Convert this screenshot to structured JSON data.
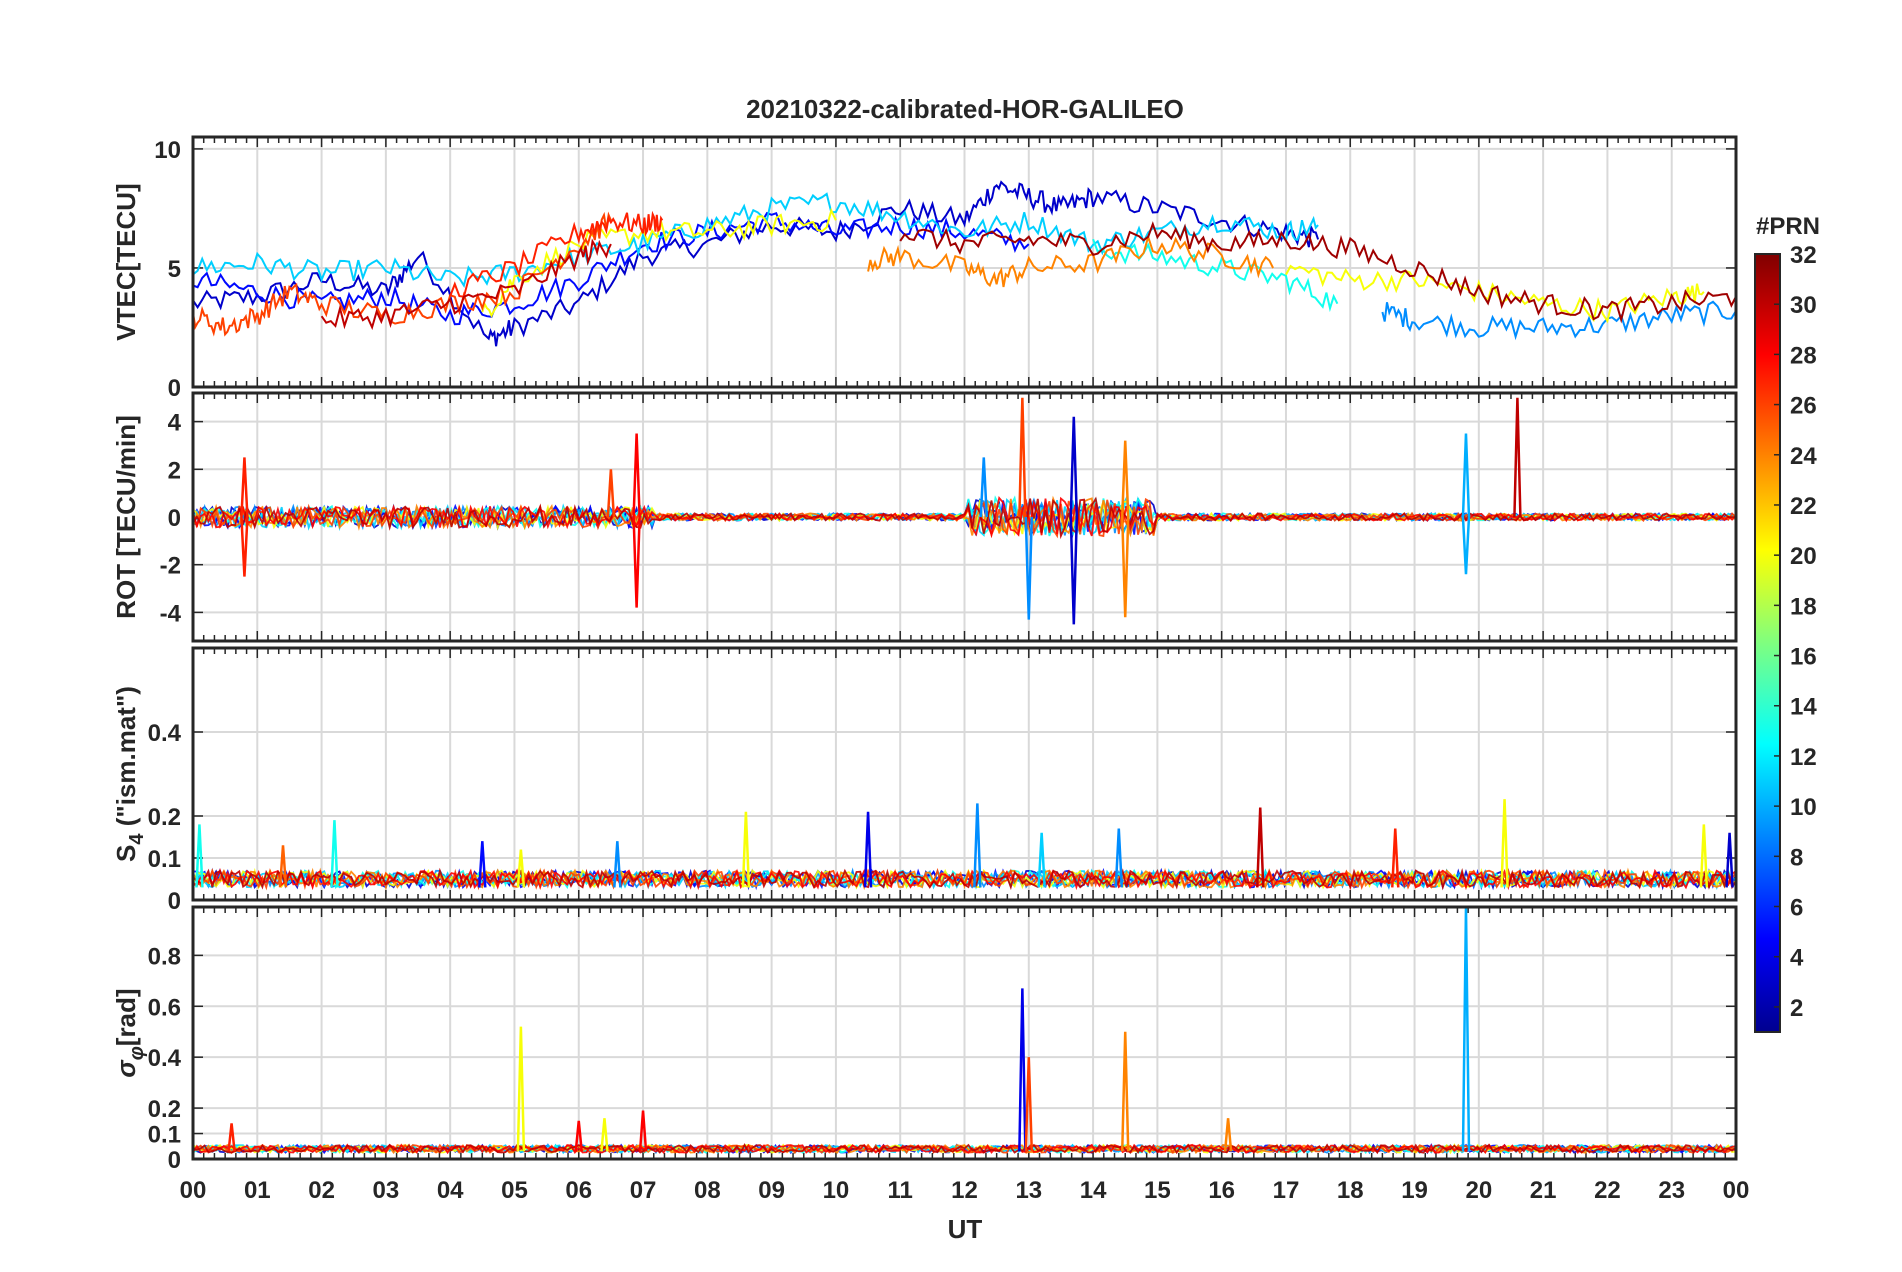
{
  "title": "20210322-calibrated-HOR-GALILEO",
  "xlabel": "UT",
  "x_ticks": [
    "00",
    "01",
    "02",
    "03",
    "04",
    "05",
    "06",
    "07",
    "08",
    "09",
    "10",
    "11",
    "12",
    "13",
    "14",
    "15",
    "16",
    "17",
    "18",
    "19",
    "20",
    "21",
    "22",
    "23",
    "00"
  ],
  "colorbar": {
    "label": "#PRN",
    "ticks": [
      "2",
      "4",
      "6",
      "8",
      "10",
      "12",
      "14",
      "16",
      "18",
      "20",
      "22",
      "24",
      "26",
      "28",
      "30",
      "32"
    ],
    "range": [
      1,
      32
    ]
  },
  "chart_data": [
    {
      "type": "line",
      "panel": "vtec",
      "ylabel": "VTEC[TECU]",
      "ylim": [
        0,
        10.5
      ],
      "yticks": [
        0,
        5,
        10
      ],
      "ytick_labels": [
        "0",
        "5",
        "10"
      ],
      "xlim": [
        0,
        24
      ],
      "series": [
        {
          "name": "PRN 3",
          "prn": 3,
          "x": [
            0,
            1,
            2,
            3,
            3.5,
            4.6,
            5,
            6,
            7,
            8,
            9,
            10,
            11,
            12,
            12.5,
            13,
            13.5,
            14,
            15,
            16,
            17,
            17.5
          ],
          "y": [
            3.5,
            3.8,
            4.5,
            4.0,
            5.5,
            2.0,
            2.5,
            3.5,
            5.5,
            6.0,
            6.8,
            6.5,
            7.5,
            7.0,
            8.5,
            8.0,
            7.5,
            8.0,
            7.5,
            7.0,
            6.5,
            6.2
          ]
        },
        {
          "name": "PRN 5",
          "prn": 5,
          "x": [
            0,
            1,
            2,
            3,
            4,
            5,
            6,
            7,
            8,
            9,
            10,
            11,
            12,
            13
          ],
          "y": [
            4.5,
            4.0,
            3.5,
            3.8,
            3.0,
            3.5,
            4.5,
            6.0,
            6.5,
            7.0,
            6.5,
            6.8,
            6.5,
            6.0
          ]
        },
        {
          "name": "PRN 9",
          "prn": 9,
          "x": [
            18.5,
            19,
            20,
            21,
            22,
            23,
            24
          ],
          "y": [
            3.2,
            2.8,
            2.5,
            2.5,
            2.6,
            3.0,
            3.2
          ]
        },
        {
          "name": "PRN 11",
          "prn": 11,
          "x": [
            0,
            1,
            2,
            3,
            4,
            5,
            6,
            7,
            8,
            9,
            10,
            11,
            12,
            13,
            14,
            15,
            16,
            17,
            17.5
          ],
          "y": [
            5.0,
            5.2,
            4.8,
            5.0,
            4.5,
            4.8,
            5.5,
            6.0,
            6.8,
            7.5,
            7.8,
            7.2,
            6.5,
            7.0,
            6.0,
            6.5,
            7.0,
            6.5,
            6.8
          ]
        },
        {
          "name": "PRN 13",
          "prn": 13,
          "x": [
            14,
            15,
            16,
            17,
            17.8
          ],
          "y": [
            5.8,
            5.5,
            5.0,
            4.5,
            3.5
          ]
        },
        {
          "name": "PRN 20",
          "prn": 20,
          "x": [
            4.5,
            5,
            6,
            7,
            8,
            9,
            10
          ],
          "y": [
            3.0,
            4.5,
            6.0,
            6.5,
            6.5,
            6.8,
            7.0
          ]
        },
        {
          "name": "PRN 20b",
          "prn": 20,
          "x": [
            17,
            18,
            19,
            20,
            21,
            22,
            23,
            23.5
          ],
          "y": [
            5.0,
            4.5,
            4.5,
            4.0,
            3.5,
            3.2,
            3.8,
            4.0
          ]
        },
        {
          "name": "PRN 24",
          "prn": 24,
          "x": [
            10.5,
            11,
            12,
            12.5,
            13,
            14,
            15,
            16,
            16.8
          ],
          "y": [
            5.3,
            5.5,
            5.0,
            4.5,
            5.0,
            5.2,
            6.0,
            5.5,
            5.0
          ]
        },
        {
          "name": "PRN 26",
          "prn": 26,
          "x": [
            0,
            0.5,
            1,
            1.5,
            2,
            3,
            4,
            5,
            6,
            6.5
          ],
          "y": [
            3.0,
            2.5,
            3.0,
            4.0,
            3.5,
            3.0,
            3.5,
            4.0,
            6.0,
            7.0
          ]
        },
        {
          "name": "PRN 27",
          "prn": 27,
          "x": [
            4,
            5,
            6,
            6.5,
            7,
            7.3
          ],
          "y": [
            4.0,
            5.0,
            6.5,
            7.0,
            6.8,
            7.0
          ]
        },
        {
          "name": "PRN 30",
          "prn": 30,
          "x": [
            2,
            3,
            4,
            5,
            6,
            6.5
          ],
          "y": [
            2.8,
            3.0,
            3.5,
            4.0,
            5.5,
            6.0
          ]
        },
        {
          "name": "PRN 31",
          "prn": 31,
          "x": [
            11,
            12,
            13,
            14,
            15,
            16,
            17,
            18,
            19,
            20,
            21,
            22,
            23,
            24
          ],
          "y": [
            6.5,
            6.0,
            6.2,
            6.0,
            6.5,
            6.0,
            6.2,
            5.8,
            5.0,
            4.0,
            3.5,
            3.2,
            3.5,
            3.8
          ]
        }
      ]
    },
    {
      "type": "line",
      "panel": "rot",
      "ylabel": "ROT [TECU/min]",
      "ylim": [
        -5.2,
        5.2
      ],
      "yticks": [
        -4,
        -2,
        0,
        2,
        4
      ],
      "ytick_labels": [
        "-4",
        "-2",
        "0",
        "2",
        "4"
      ],
      "xlim": [
        0,
        24
      ],
      "note": "noisy fluctuations around zero; largest spikes listed",
      "spikes": [
        {
          "x": 0.8,
          "y": 2.5,
          "prn": 27
        },
        {
          "x": 0.8,
          "y": -2.5,
          "prn": 27
        },
        {
          "x": 6.5,
          "y": 2.0,
          "prn": 26
        },
        {
          "x": 6.9,
          "y": 3.5,
          "prn": 28
        },
        {
          "x": 6.9,
          "y": -3.8,
          "prn": 28
        },
        {
          "x": 12.3,
          "y": 2.5,
          "prn": 9
        },
        {
          "x": 12.9,
          "y": 5.0,
          "prn": 26
        },
        {
          "x": 13.0,
          "y": -4.3,
          "prn": 9
        },
        {
          "x": 13.7,
          "y": 4.2,
          "prn": 3
        },
        {
          "x": 13.7,
          "y": -4.5,
          "prn": 3
        },
        {
          "x": 14.5,
          "y": 3.2,
          "prn": 24
        },
        {
          "x": 14.5,
          "y": -4.2,
          "prn": 24
        },
        {
          "x": 19.8,
          "y": 3.5,
          "prn": 10
        },
        {
          "x": 19.8,
          "y": -2.4,
          "prn": 10
        },
        {
          "x": 20.6,
          "y": 5.0,
          "prn": 30
        }
      ]
    },
    {
      "type": "line",
      "panel": "s4",
      "ylabel": "S4 (\"ism.mat\")",
      "ylabel_main": "S",
      "ylabel_sub": "4",
      "ylabel_rest": " (\"ism.mat\")",
      "ylim": [
        0,
        0.6
      ],
      "yticks": [
        0,
        0.1,
        0.2,
        0.4
      ],
      "ytick_labels": [
        "0",
        "0.1",
        "0.2",
        "0.4"
      ],
      "xlim": [
        0,
        24
      ],
      "note": "baseline around 0.03-0.05; bursts listed",
      "spikes": [
        {
          "x": 0.1,
          "y": 0.18,
          "prn": 13
        },
        {
          "x": 1.4,
          "y": 0.13,
          "prn": 25
        },
        {
          "x": 2.2,
          "y": 0.19,
          "prn": 13
        },
        {
          "x": 4.5,
          "y": 0.14,
          "prn": 5
        },
        {
          "x": 5.1,
          "y": 0.12,
          "prn": 20
        },
        {
          "x": 6.6,
          "y": 0.14,
          "prn": 9
        },
        {
          "x": 8.6,
          "y": 0.21,
          "prn": 20
        },
        {
          "x": 10.5,
          "y": 0.21,
          "prn": 4
        },
        {
          "x": 12.2,
          "y": 0.23,
          "prn": 9
        },
        {
          "x": 13.2,
          "y": 0.16,
          "prn": 11
        },
        {
          "x": 14.4,
          "y": 0.17,
          "prn": 9
        },
        {
          "x": 16.6,
          "y": 0.22,
          "prn": 30
        },
        {
          "x": 18.7,
          "y": 0.17,
          "prn": 27
        },
        {
          "x": 20.4,
          "y": 0.24,
          "prn": 20
        },
        {
          "x": 23.5,
          "y": 0.18,
          "prn": 20
        },
        {
          "x": 23.9,
          "y": 0.16,
          "prn": 3
        }
      ]
    },
    {
      "type": "line",
      "panel": "sigma_phi",
      "ylabel": "σφ[rad]",
      "ylabel_main": "σ",
      "ylabel_sub": "φ",
      "ylabel_rest": "[rad]",
      "ylim": [
        0,
        0.99
      ],
      "yticks": [
        0,
        0.1,
        0.2,
        0.4,
        0.6,
        0.8
      ],
      "ytick_labels": [
        "0",
        "0.1",
        "0.2",
        "0.4",
        "0.6",
        "0.8"
      ],
      "xlim": [
        0,
        24
      ],
      "note": "baseline around 0.03-0.05; spikes listed",
      "spikes": [
        {
          "x": 0.6,
          "y": 0.14,
          "prn": 27
        },
        {
          "x": 5.1,
          "y": 0.52,
          "prn": 20
        },
        {
          "x": 6.0,
          "y": 0.15,
          "prn": 28
        },
        {
          "x": 6.4,
          "y": 0.16,
          "prn": 20
        },
        {
          "x": 7.0,
          "y": 0.19,
          "prn": 28
        },
        {
          "x": 12.9,
          "y": 0.67,
          "prn": 4
        },
        {
          "x": 13.0,
          "y": 0.4,
          "prn": 26
        },
        {
          "x": 14.5,
          "y": 0.5,
          "prn": 24
        },
        {
          "x": 16.1,
          "y": 0.16,
          "prn": 24
        },
        {
          "x": 19.8,
          "y": 0.99,
          "prn": 10
        }
      ]
    }
  ]
}
